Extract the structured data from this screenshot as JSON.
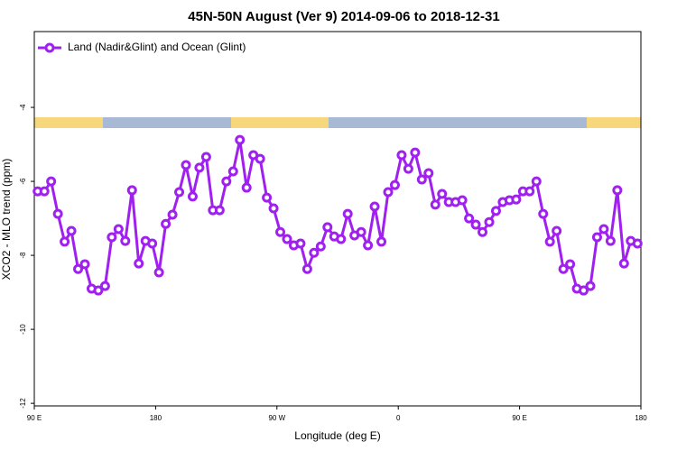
{
  "chart_data": {
    "type": "line",
    "title": "45N-50N August (Ver 9)   2014-09-06 to 2018-12-31",
    "xlabel": "Longitude (deg E)",
    "ylabel": "XCO2 - MLO trend (ppm)",
    "xlim": [
      90,
      540
    ],
    "ylim": [
      -12.07,
      -1.95
    ],
    "xticks": [
      {
        "value": 90,
        "label": "90 E"
      },
      180,
      {
        "value": 270,
        "label": "90 W"
      },
      {
        "value": 360,
        "label": "0"
      },
      {
        "value": 450,
        "label": "90 E"
      },
      {
        "value": 540,
        "label": "180"
      }
    ],
    "yticks": [
      -12,
      -10,
      -8,
      -6,
      -4
    ],
    "legend": "top-left",
    "x": [
      92.5,
      97.5,
      102.5,
      107.5,
      112.5,
      117.5,
      122.5,
      127.5,
      132.5,
      137.5,
      142.5,
      147.5,
      152.5,
      157.5,
      162.5,
      167.5,
      172.5,
      177.5,
      182.5,
      187.5,
      192.5,
      197.5,
      202.5,
      207.5,
      212.5,
      217.5,
      222.5,
      227.5,
      232.5,
      237.5,
      242.5,
      247.5,
      252.5,
      257.5,
      262.5,
      267.5,
      272.5,
      277.5,
      282.5,
      287.5,
      292.5,
      297.5,
      302.5,
      307.5,
      312.5,
      317.5,
      322.5,
      327.5,
      332.5,
      337.5,
      342.5,
      347.5,
      352.5,
      357.5,
      362.5,
      367.5,
      372.5,
      377.5,
      382.5,
      387.5,
      392.5,
      397.5,
      402.5,
      407.5,
      412.5,
      417.5,
      422.5,
      427.5,
      432.5,
      437.5,
      442.5,
      447.5,
      452.5,
      457.5,
      462.5,
      467.5,
      472.5,
      477.5,
      482.5,
      487.5,
      492.5,
      497.5,
      502.5,
      507.5,
      512.5,
      517.5,
      522.5,
      527.5,
      532.5,
      537.5
    ],
    "series": [
      {
        "name": "Land (Nadir&Glint) and Ocean (Glint)",
        "color": "#a020f0",
        "values": [
          -6.27,
          -6.27,
          -6.0,
          -6.88,
          -7.63,
          -7.34,
          -8.37,
          -8.24,
          -8.9,
          -8.95,
          -8.83,
          -7.51,
          -7.29,
          -7.61,
          -6.24,
          -8.22,
          -7.61,
          -7.68,
          -8.46,
          -7.15,
          -6.9,
          -6.29,
          -5.56,
          -6.41,
          -5.63,
          -5.34,
          -6.78,
          -6.78,
          -6.0,
          -5.73,
          -4.88,
          -6.17,
          -5.29,
          -5.39,
          -6.44,
          -6.73,
          -7.37,
          -7.56,
          -7.73,
          -7.68,
          -8.37,
          -7.93,
          -7.76,
          -7.24,
          -7.49,
          -7.56,
          -6.88,
          -7.46,
          -7.37,
          -7.73,
          -6.68,
          -7.63,
          -6.29,
          -6.1,
          -5.29,
          -5.66,
          -5.22,
          -5.95,
          -5.78,
          -6.63,
          -6.34,
          -6.56,
          -6.56,
          -6.51,
          -7.0,
          -7.17,
          -7.37,
          -7.1,
          -6.8,
          -6.56,
          -6.51,
          -6.49,
          -6.27,
          -6.27,
          -6.0,
          -6.88,
          -7.63,
          -7.34,
          -8.37,
          -8.24,
          -8.9,
          -8.95,
          -8.83,
          -7.51,
          -7.29,
          -7.61,
          -6.24,
          -8.22,
          -7.61,
          -7.68
        ]
      }
    ]
  }
}
